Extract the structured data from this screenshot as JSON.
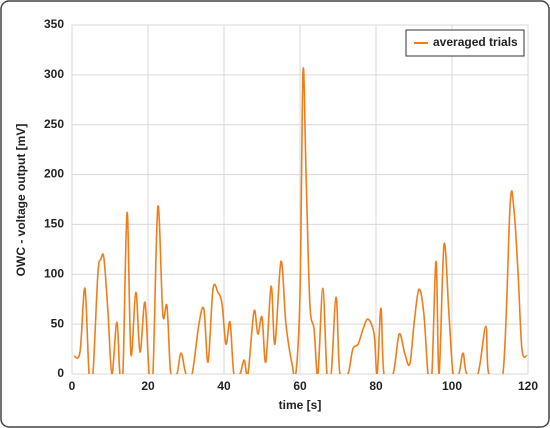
{
  "chart_data": {
    "type": "line",
    "xlabel": "time [s]",
    "ylabel": "OWC - voltage output [mV]",
    "x": [
      0.5,
      2.1,
      3.4,
      4.5,
      5.5,
      6.8,
      7.6,
      8.4,
      9.5,
      10.5,
      11.8,
      12.6,
      13.4,
      14.5,
      15.5,
      16.8,
      17.9,
      19.2,
      20.3,
      21.3,
      22.6,
      23.9,
      25,
      26,
      27.6,
      28.7,
      30,
      31.6,
      33.4,
      34.7,
      35.8,
      37.1,
      38.4,
      39.5,
      40.5,
      41.6,
      42.6,
      44.2,
      45.3,
      46.3,
      47.9,
      48.9,
      50,
      51,
      52.4,
      53.4,
      55,
      56.3,
      57.9,
      58.9,
      60,
      60.8,
      61.6,
      62.6,
      63.7,
      64.7,
      66,
      67.1,
      68.2,
      69.5,
      70.5,
      72.6,
      73.9,
      75.3,
      76.6,
      77.9,
      79.5,
      80.3,
      81.3,
      82.1,
      84.5,
      86.1,
      87.6,
      88.9,
      90,
      91.3,
      92.6,
      93.7,
      94.7,
      95.8,
      96.6,
      97.9,
      99.2,
      100.3,
      101.8,
      102.9,
      103.9,
      106.8,
      108.9,
      109.7,
      113.4,
      115.3,
      116.3,
      117.4,
      118.4,
      119.7
    ],
    "series": [
      {
        "name": "averaged trials",
        "color": "#f07d1a",
        "values": [
          18,
          22,
          86,
          0,
          0,
          100,
          115,
          116,
          60,
          0,
          52,
          0,
          0,
          162,
          20,
          82,
          22,
          72,
          0,
          0,
          168,
          60,
          68,
          0,
          0,
          21,
          0,
          0,
          50,
          65,
          12,
          85,
          82,
          70,
          30,
          52,
          0,
          0,
          14,
          0,
          63,
          40,
          57,
          12,
          88,
          30,
          113,
          50,
          10,
          0,
          80,
          304,
          200,
          70,
          45,
          0,
          86,
          0,
          0,
          77,
          0,
          0,
          25,
          30,
          45,
          55,
          40,
          0,
          66,
          0,
          0,
          40,
          20,
          10,
          50,
          85,
          60,
          0,
          0,
          113,
          0,
          130,
          60,
          0,
          0,
          21,
          0,
          0,
          48,
          0,
          0,
          170,
          165,
          100,
          25,
          18
        ]
      }
    ],
    "xlim": [
      0,
      120
    ],
    "xticks": [
      0,
      20,
      40,
      60,
      80,
      100,
      120
    ],
    "ylim": [
      0,
      350
    ],
    "yticks": [
      0,
      50,
      100,
      150,
      200,
      250,
      300,
      350
    ],
    "grid": true,
    "legend": "upper right"
  }
}
